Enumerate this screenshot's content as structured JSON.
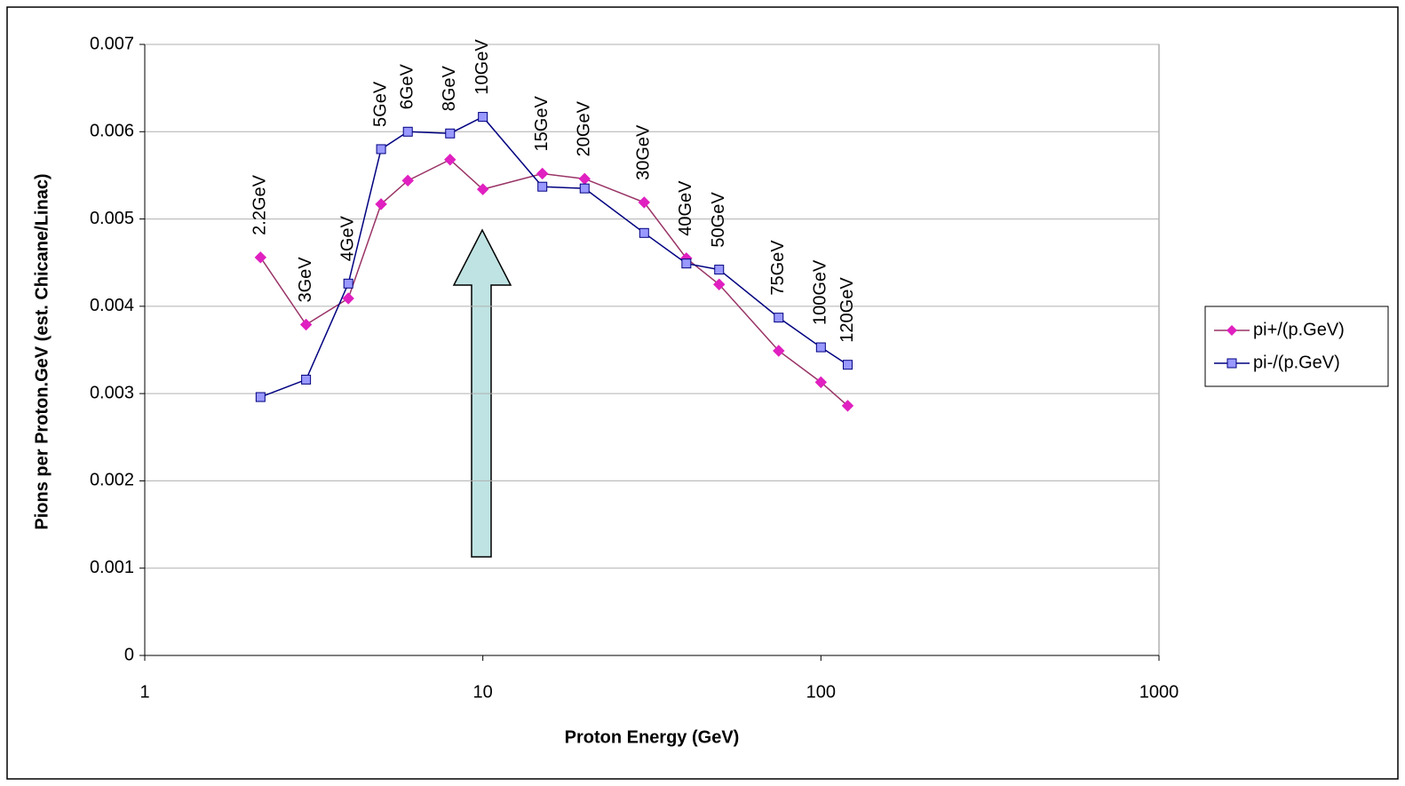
{
  "chart_data": {
    "type": "line",
    "x_label": "Proton Energy (GeV)",
    "y_label": "Pions per Proton.GeV (est. Chicane/Linac)",
    "x": [
      2.2,
      3,
      4,
      5,
      6,
      8,
      10,
      15,
      20,
      30,
      40,
      50,
      75,
      100,
      120
    ],
    "annotations": [
      "2.2GeV",
      "3GeV",
      "4GeV",
      "5GeV",
      "6GeV",
      "8GeV",
      "10GeV",
      "15GeV",
      "20GeV",
      "30GeV",
      "40GeV",
      "50GeV",
      "75GeV",
      "100GeV",
      "120GeV"
    ],
    "series": [
      {
        "name": "pi+/(p.GeV)",
        "color": "#993366",
        "marker": "diamond",
        "marker_color": "#e020c0",
        "values": [
          0.00456,
          0.00379,
          0.00409,
          0.00517,
          0.00544,
          0.00568,
          0.00534,
          0.00552,
          0.00546,
          0.00519,
          0.00455,
          0.00425,
          0.00349,
          0.00313,
          0.00286
        ]
      },
      {
        "name": "pi-/(p.GeV)",
        "color": "#000080",
        "marker": "square",
        "marker_color": "#9999ff",
        "values": [
          0.00296,
          0.00316,
          0.00426,
          0.0058,
          0.006,
          0.00598,
          0.00617,
          0.00537,
          0.00535,
          0.00484,
          0.00449,
          0.00442,
          0.00387,
          0.00353,
          0.00333
        ]
      }
    ],
    "xscale": "log",
    "xlim": [
      1,
      1000
    ],
    "xticks": [
      1,
      10,
      100,
      1000
    ],
    "ylim": [
      0,
      0.007
    ],
    "yticks": [
      0,
      0.001,
      0.002,
      0.003,
      0.004,
      0.005,
      0.006,
      0.007
    ],
    "grid": true,
    "legend": "right"
  }
}
